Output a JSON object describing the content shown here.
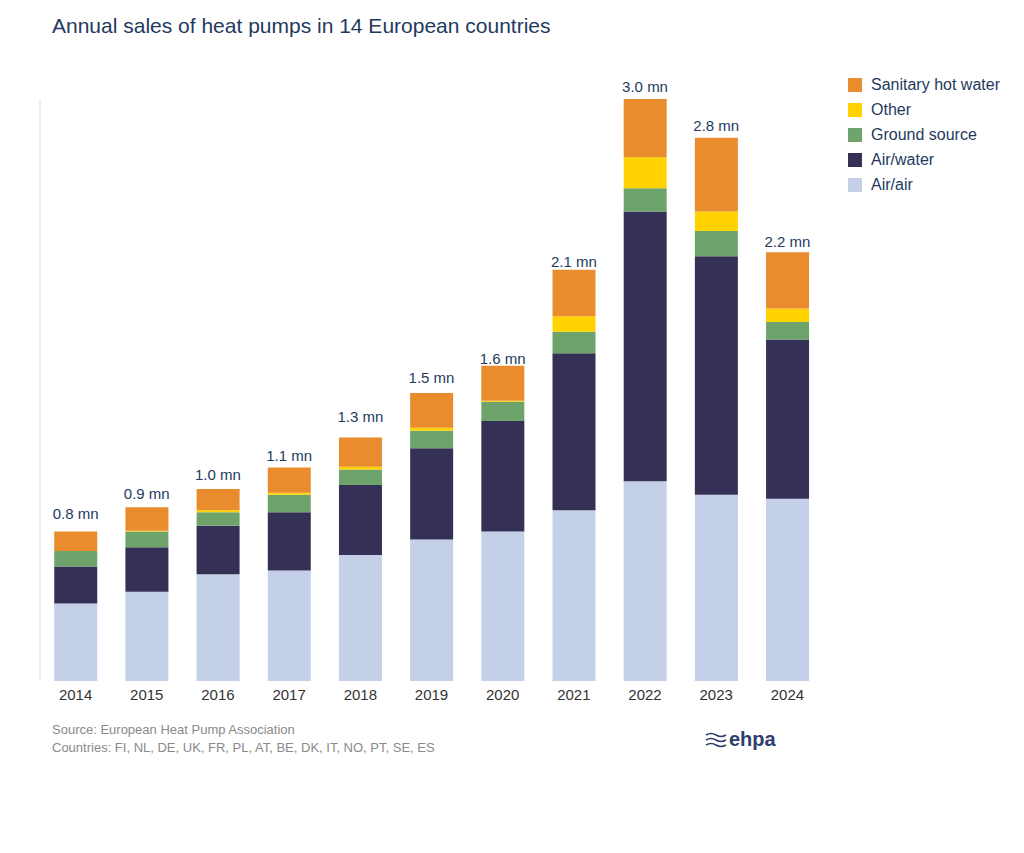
{
  "chart_data": {
    "type": "bar",
    "title": "Annual sales of heat pumps in 14 European countries",
    "categories": [
      "2014",
      "2015",
      "2016",
      "2017",
      "2018",
      "2019",
      "2020",
      "2021",
      "2022",
      "2023",
      "2024"
    ],
    "series": [
      {
        "name": "Air/air",
        "color": "#c3d0e8",
        "values": [
          0.4,
          0.46,
          0.55,
          0.57,
          0.65,
          0.73,
          0.77,
          0.88,
          1.03,
          0.96,
          0.94
        ]
      },
      {
        "name": "Air/water",
        "color": "#353055",
        "values": [
          0.19,
          0.23,
          0.25,
          0.3,
          0.36,
          0.47,
          0.57,
          0.81,
          1.39,
          1.23,
          0.82
        ]
      },
      {
        "name": "Ground source",
        "color": "#6fa36c",
        "values": [
          0.08,
          0.08,
          0.07,
          0.09,
          0.08,
          0.09,
          0.1,
          0.11,
          0.12,
          0.13,
          0.09
        ]
      },
      {
        "name": "Other",
        "color": "#ffd200",
        "values": [
          0.0,
          0.005,
          0.01,
          0.01,
          0.015,
          0.015,
          0.005,
          0.08,
          0.16,
          0.1,
          0.07
        ]
      },
      {
        "name": "Sanitary hot water",
        "color": "#e98c2e",
        "values": [
          0.1,
          0.12,
          0.11,
          0.13,
          0.15,
          0.18,
          0.18,
          0.24,
          0.3,
          0.38,
          0.29
        ]
      }
    ],
    "totals": [
      0.8,
      0.9,
      1.0,
      1.1,
      1.3,
      1.5,
      1.6,
      2.1,
      3.0,
      2.8,
      2.2
    ],
    "total_labels": [
      "0.8 mn",
      "0.9 mn",
      "1.0 mn",
      "1.1 mn",
      "1.3 mn",
      "1.5 mn",
      "1.6 mn",
      "2.1 mn",
      "3.0 mn",
      "2.8 mn",
      "2.2 mn"
    ],
    "ylim": [
      0,
      3.0
    ],
    "stacked": true,
    "grid": false,
    "legend": "top-right",
    "tick_labels": "x",
    "source": "Source: European Heat Pump Association",
    "note": "Countries: FI, NL, DE, UK, FR, PL, AT, BE, DK, IT, NO, PT, SE, ES",
    "logo": "ehpa"
  }
}
